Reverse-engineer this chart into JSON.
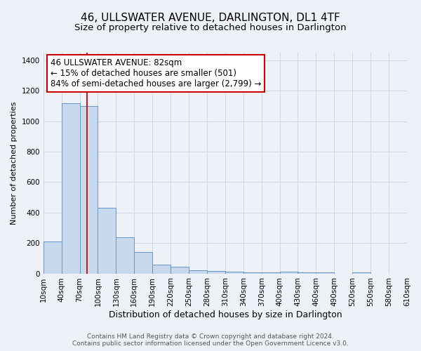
{
  "title": "46, ULLSWATER AVENUE, DARLINGTON, DL1 4TF",
  "subtitle": "Size of property relative to detached houses in Darlington",
  "xlabel": "Distribution of detached houses by size in Darlington",
  "ylabel": "Number of detached properties",
  "bin_edges": [
    10,
    40,
    70,
    100,
    130,
    160,
    190,
    220,
    250,
    280,
    310,
    340,
    370,
    400,
    430,
    460,
    490,
    520,
    550,
    580,
    610
  ],
  "bar_heights": [
    210,
    1120,
    1100,
    430,
    240,
    140,
    60,
    45,
    20,
    15,
    10,
    5,
    5,
    10,
    8,
    5,
    0,
    5,
    0,
    0
  ],
  "bar_color": "#c9d9ed",
  "bar_edge_color": "#6495c8",
  "red_line_x": 82,
  "annotation_line1": "46 ULLSWATER AVENUE: 82sqm",
  "annotation_line2": "← 15% of detached houses are smaller (501)",
  "annotation_line3": "84% of semi-detached houses are larger (2,799) →",
  "annotation_box_color": "#ffffff",
  "annotation_box_edge": "#cc0000",
  "ylim": [
    0,
    1450
  ],
  "yticks": [
    0,
    200,
    400,
    600,
    800,
    1000,
    1200,
    1400
  ],
  "grid_color": "#d0d8e8",
  "bg_color": "#eef2f8",
  "footer1": "Contains HM Land Registry data © Crown copyright and database right 2024.",
  "footer2": "Contains public sector information licensed under the Open Government Licence v3.0.",
  "title_fontsize": 11,
  "subtitle_fontsize": 9.5,
  "xlabel_fontsize": 9,
  "ylabel_fontsize": 8,
  "tick_fontsize": 7.5,
  "annotation_fontsize": 8.5,
  "footer_fontsize": 6.5
}
